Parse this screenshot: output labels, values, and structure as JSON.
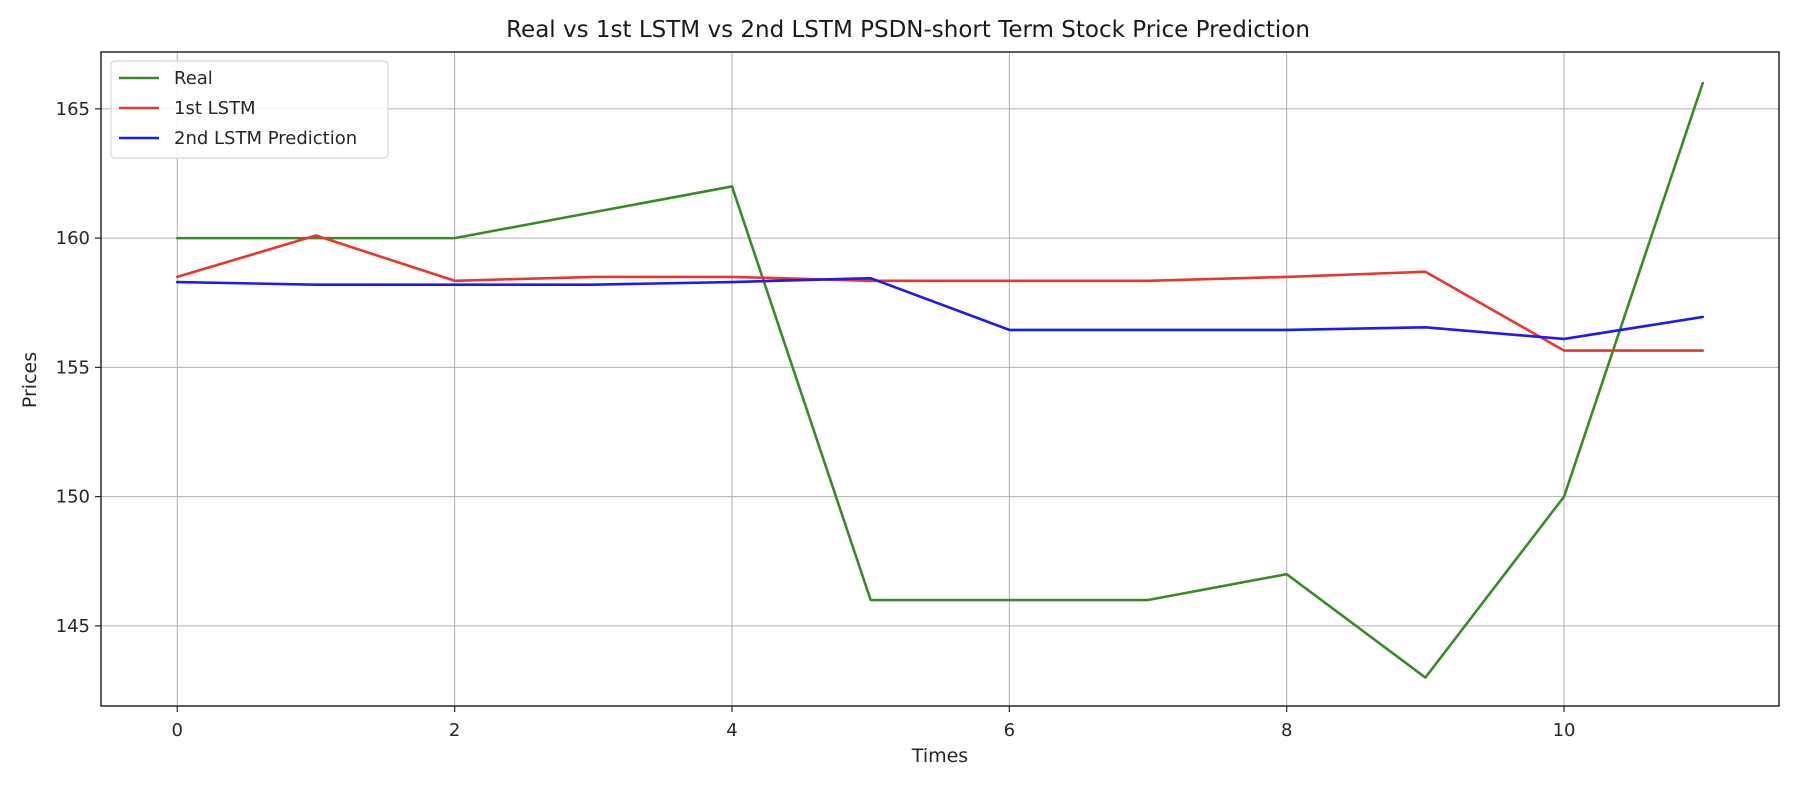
{
  "chart_data": {
    "type": "line",
    "title": "Real vs 1st LSTM vs 2nd LSTM PSDN-short Term Stock Price Prediction",
    "xlabel": "Times",
    "ylabel": "Prices",
    "xlim": [
      -0.55,
      11.55
    ],
    "ylim": [
      141.9,
      167.2
    ],
    "xticks": [
      0,
      2,
      4,
      6,
      8,
      10
    ],
    "yticks": [
      145,
      150,
      155,
      160,
      165
    ],
    "grid": true,
    "legend_position": "top-left",
    "x": [
      0,
      1,
      2,
      3,
      4,
      5,
      6,
      7,
      8,
      9,
      10,
      11
    ],
    "series": [
      {
        "name": "Real",
        "color": "#3a8a2a",
        "values": [
          160,
          160,
          160,
          161,
          162,
          146,
          146,
          146,
          147,
          143,
          150,
          166
        ]
      },
      {
        "name": "1st LSTM",
        "color": "#e8372c",
        "values": [
          158.5,
          160.1,
          158.35,
          158.5,
          158.5,
          158.35,
          158.35,
          158.35,
          158.5,
          158.7,
          155.65,
          155.65
        ]
      },
      {
        "name": "2nd LSTM Prediction",
        "color": "#1c1cf0",
        "values": [
          158.3,
          158.2,
          158.2,
          158.2,
          158.3,
          158.45,
          156.45,
          156.45,
          156.45,
          156.55,
          156.1,
          156.95
        ]
      }
    ]
  }
}
